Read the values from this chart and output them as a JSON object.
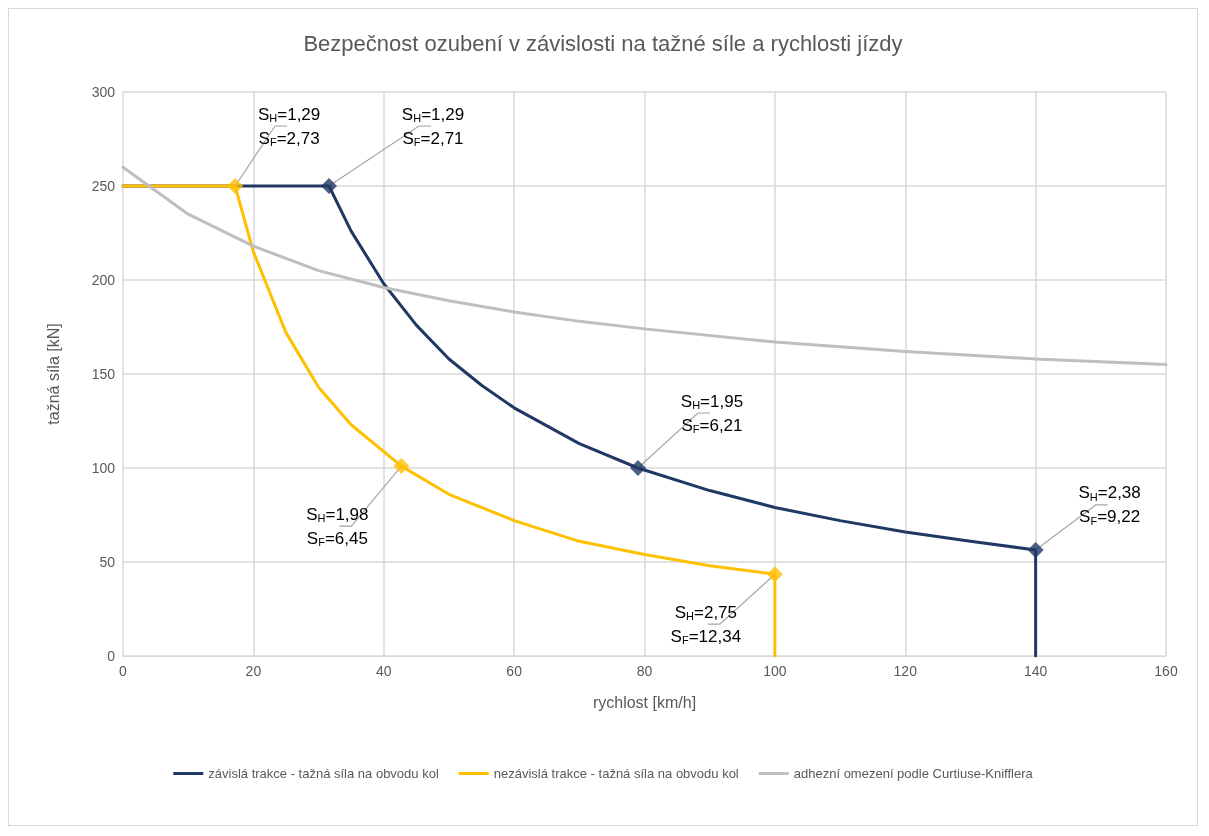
{
  "chart_data": {
    "type": "line",
    "title": "Bezpečnost ozubení v závislosti na tažné síle a rychlosti jízdy",
    "xlabel": "rychlost [km/h]",
    "ylabel": "tažná síla [kN]",
    "xlim": [
      0,
      160
    ],
    "xticks": [
      0,
      20,
      40,
      60,
      80,
      100,
      120,
      140,
      160
    ],
    "ylim": [
      0,
      300
    ],
    "yticks": [
      0,
      50,
      100,
      150,
      200,
      250,
      300
    ],
    "grid": true,
    "legend": "bottom",
    "line_style": "solid",
    "series": [
      {
        "name": "závislá trakce - tažná síla na obvodu kol",
        "color": "#1f3864",
        "marker": "none",
        "x": [
          0,
          31.6,
          35,
          40,
          45,
          50,
          55,
          60,
          70,
          79,
          90,
          100,
          110,
          120,
          130,
          140,
          140
        ],
        "values": [
          250,
          250,
          226,
          198,
          176,
          158,
          144,
          132,
          113,
          100,
          88,
          79,
          72,
          66,
          61,
          56.4,
          0
        ]
      },
      {
        "name": "nezávislá trakce - tažná síla na obvodu kol",
        "color": "#ffc000",
        "marker": "none",
        "x": [
          0,
          17.2,
          20,
          25,
          30,
          35,
          42.7,
          50,
          60,
          70,
          80,
          90,
          100,
          100
        ],
        "values": [
          250,
          250,
          215,
          172,
          143,
          123,
          101,
          86,
          72,
          61,
          54,
          48,
          43.5,
          0
        ]
      },
      {
        "name": "adhezní omezení podle Curtiuse-Knifflera",
        "color": "#bfbfbf",
        "marker": "none",
        "x": [
          0,
          10,
          20,
          30,
          40,
          50,
          60,
          70,
          80,
          100,
          120,
          140,
          160
        ],
        "values": [
          260,
          235,
          218,
          205,
          196,
          189,
          183,
          178,
          174,
          167,
          162,
          158,
          155
        ]
      },
      {
        "type": "scatter",
        "color": "#1f3864",
        "marker": "diamond",
        "x": [
          31.6,
          79,
          140
        ],
        "values": [
          250,
          100,
          56.4
        ]
      },
      {
        "type": "scatter",
        "color": "#ffc000",
        "marker": "diamond",
        "x": [
          17.2,
          42.7,
          100
        ],
        "values": [
          250,
          101,
          43.5
        ]
      }
    ],
    "annotations": [
      {
        "text": "S$_{H}$=1,29\nS$_{F}$=2,73",
        "x": 17.2,
        "y": 250
      },
      {
        "text": "S$_{H}$=1,29\nS$_{F}$=2,71",
        "x": 31.6,
        "y": 250
      },
      {
        "text": "S$_{H}$=1,98\nS$_{F}$=6,45",
        "x": 42.7,
        "y": 101
      },
      {
        "text": "S$_{H}$=1,95\nS$_{F}$=6,21",
        "x": 79,
        "y": 100
      },
      {
        "text": "S$_{H}$=2,38\nS$_{F}$=9,22",
        "x": 140,
        "y": 56.4
      },
      {
        "text": "S$_{H}$=2,75\nS$_{F}$=12,34",
        "x": 100,
        "y": 43.5
      }
    ]
  }
}
